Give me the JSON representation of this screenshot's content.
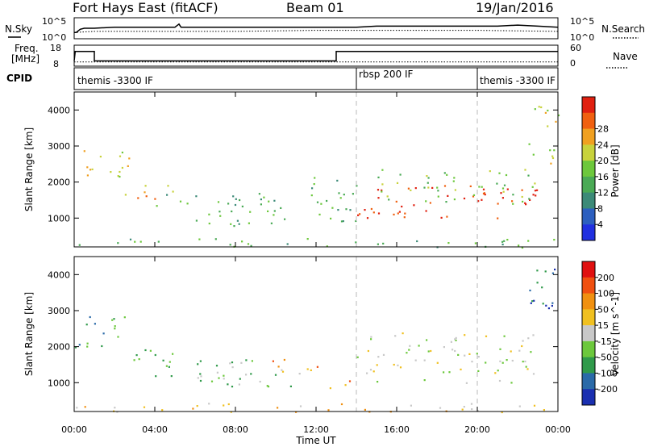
{
  "header": {
    "station": "Fort Hays East (fitACF)",
    "beam": "Beam 01",
    "date": "19/Jan/2016"
  },
  "noise_panel": {
    "left_label": "N.Sky",
    "right_label": "N.Search",
    "left_ticks": [
      "10^5",
      "10^0"
    ],
    "right_ticks": [
      "10^5",
      "10^0"
    ],
    "sky_noise": [
      [
        0.0,
        0.3
      ],
      [
        0.1,
        0.3
      ],
      [
        0.3,
        0.45
      ],
      [
        0.5,
        0.5
      ],
      [
        1,
        0.5
      ],
      [
        2,
        0.55
      ],
      [
        3,
        0.55
      ],
      [
        4,
        0.55
      ],
      [
        5,
        0.55
      ],
      [
        5.2,
        0.7
      ],
      [
        5.3,
        0.55
      ],
      [
        6,
        0.55
      ],
      [
        7,
        0.55
      ],
      [
        8,
        0.55
      ],
      [
        9,
        0.55
      ],
      [
        10,
        0.55
      ],
      [
        11,
        0.55
      ],
      [
        12,
        0.55
      ],
      [
        13,
        0.55
      ],
      [
        14,
        0.55
      ],
      [
        15,
        0.6
      ],
      [
        16,
        0.6
      ],
      [
        17,
        0.6
      ],
      [
        18,
        0.6
      ],
      [
        19,
        0.6
      ],
      [
        20,
        0.6
      ],
      [
        21,
        0.6
      ],
      [
        22,
        0.65
      ],
      [
        23,
        0.6
      ],
      [
        24,
        0.55
      ]
    ],
    "search_noise": [
      [
        0,
        0.3
      ],
      [
        1,
        0.35
      ],
      [
        4,
        0.35
      ],
      [
        8,
        0.35
      ],
      [
        12,
        0.4
      ],
      [
        16,
        0.4
      ],
      [
        20,
        0.4
      ],
      [
        24,
        0.35
      ]
    ]
  },
  "freq_panel": {
    "left_label_1": "Freq.",
    "left_label_2": "[MHz]",
    "right_label": "Nave",
    "left_ticks": [
      "18",
      "8"
    ],
    "right_ticks": [
      "60",
      "0"
    ],
    "frequency_mhz": [
      [
        0,
        10.5
      ],
      [
        0.05,
        15
      ],
      [
        1.0,
        15
      ],
      [
        1.0,
        10.5
      ],
      [
        13.0,
        10.5
      ],
      [
        13.0,
        15
      ],
      [
        24,
        15
      ]
    ],
    "nave": [
      [
        0,
        12
      ],
      [
        24,
        12
      ]
    ]
  },
  "cpid_panel": {
    "label": "CPID",
    "segments": [
      {
        "start": 0,
        "end": 14,
        "name": "themis -3300 IF"
      },
      {
        "start": 14,
        "end": 20,
        "name": "rbsp 200 IF"
      },
      {
        "start": 20,
        "end": 24,
        "name": "themis -3300 IF"
      }
    ]
  },
  "chart_data": [
    {
      "type": "heatmap",
      "name": "power",
      "ylabel": "Slant Range [km]",
      "colorbar_label": "Power [dB]",
      "ylim": [
        200,
        4500
      ],
      "xlim_hours": [
        0,
        24
      ],
      "yticks": [
        1000,
        2000,
        3000,
        4000
      ],
      "colorbar_ticks": [
        "4",
        "8",
        "12",
        "16",
        "20",
        "24",
        "28"
      ],
      "colorbar_colors": [
        "#2030e0",
        "#2c5fbf",
        "#3c8a78",
        "#4aaa55",
        "#6dc83c",
        "#c8d23c",
        "#f0a020",
        "#f06010",
        "#e02010"
      ],
      "features": [
        {
          "t0": 0.0,
          "t1": 2.7,
          "r0": 2000,
          "r1": 3000,
          "level": 5
        },
        {
          "t0": 2.5,
          "t1": 5.0,
          "r0": 1500,
          "r1": 2100,
          "level": 6
        },
        {
          "t0": 4.0,
          "t1": 10.5,
          "r0": 1200,
          "r1": 1700,
          "level": 3
        },
        {
          "t0": 6.0,
          "t1": 11.5,
          "r0": 800,
          "r1": 1400,
          "level": 3
        },
        {
          "t0": 11.0,
          "t1": 14.0,
          "r0": 900,
          "r1": 2200,
          "level": 3
        },
        {
          "t0": 14.0,
          "t1": 23.0,
          "r0": 1000,
          "r1": 2000,
          "level": 8
        },
        {
          "t0": 15.0,
          "t1": 23.0,
          "r0": 1400,
          "r1": 2400,
          "level": 4
        },
        {
          "t0": 22.5,
          "t1": 24.0,
          "r0": 2500,
          "r1": 4300,
          "level": 5
        },
        {
          "t0": 0.0,
          "t1": 24.0,
          "r0": 200,
          "r1": 450,
          "level": 3
        }
      ]
    },
    {
      "type": "heatmap",
      "name": "velocity",
      "ylabel": "Slant Range [km]",
      "colorbar_label": "Velocity [m s^-1]",
      "ylim": [
        200,
        4500
      ],
      "xlim_hours": [
        0,
        24
      ],
      "yticks": [
        1000,
        2000,
        3000,
        4000
      ],
      "colorbar_ticks": [
        "200",
        "100",
        "50",
        "15",
        "-15",
        "-50",
        "-100",
        "-200"
      ],
      "colorbar_colors": [
        "#1a2fb0",
        "#2a6aa8",
        "#2f9a4a",
        "#6cc83c",
        "#c8c8c8",
        "#f0c020",
        "#f09010",
        "#f05010",
        "#e01010"
      ],
      "features": [
        {
          "t0": 0.0,
          "t1": 2.7,
          "r0": 2000,
          "r1": 3000,
          "level": 2
        },
        {
          "t0": 2.5,
          "t1": 5.0,
          "r0": 1500,
          "r1": 2100,
          "level": 3
        },
        {
          "t0": 4.0,
          "t1": 10.5,
          "r0": 1200,
          "r1": 1700,
          "level": 3
        },
        {
          "t0": 9.5,
          "t1": 12.5,
          "r0": 1300,
          "r1": 1700,
          "level": 6
        },
        {
          "t0": 6.0,
          "t1": 11.5,
          "r0": 800,
          "r1": 1400,
          "level": 3
        },
        {
          "t0": 12.5,
          "t1": 14.0,
          "r0": 800,
          "r1": 1200,
          "level": 6
        },
        {
          "t0": 14.0,
          "t1": 23.0,
          "r0": 1000,
          "r1": 2400,
          "level": 4
        },
        {
          "t0": 22.5,
          "t1": 24.0,
          "r0": 2500,
          "r1": 4300,
          "level": 1
        },
        {
          "t0": 0.0,
          "t1": 24.0,
          "r0": 200,
          "r1": 450,
          "level": 5
        }
      ]
    }
  ],
  "x_axis": {
    "label": "Time UT",
    "ticks": [
      "00:00",
      "04:00",
      "08:00",
      "12:00",
      "16:00",
      "20:00",
      "00:00"
    ]
  }
}
